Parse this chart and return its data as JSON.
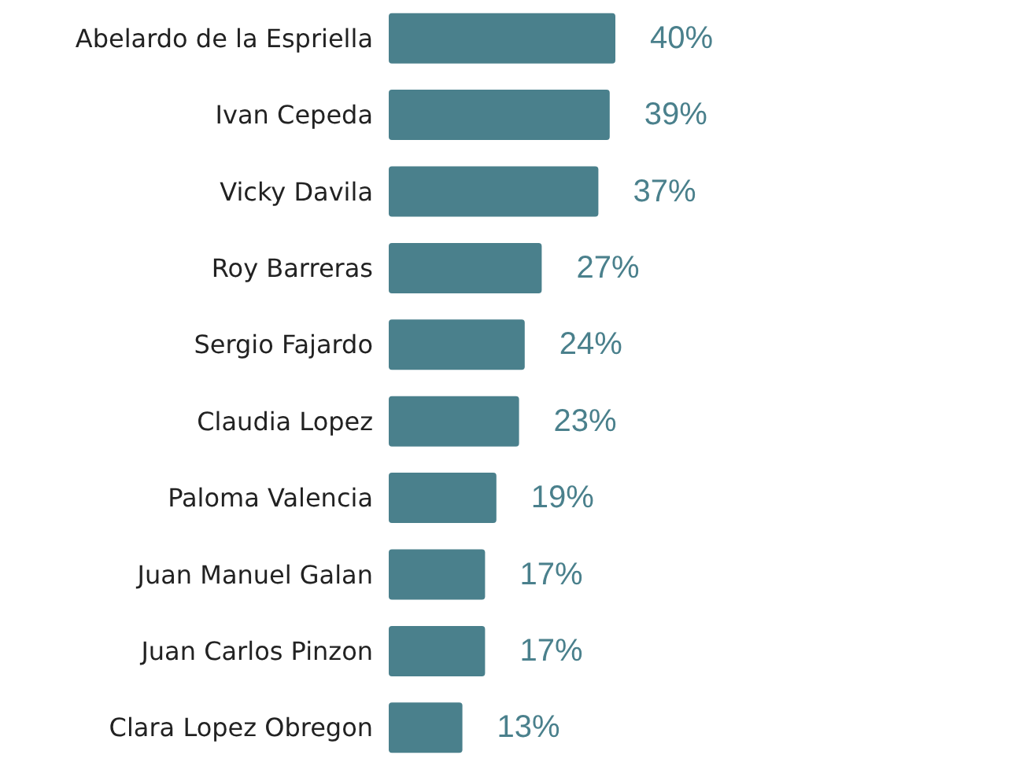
{
  "chart_data": {
    "type": "bar",
    "orientation": "horizontal",
    "categories": [
      "Abelardo de la Espriella",
      "Ivan Cepeda",
      "Vicky Davila",
      "Roy Barreras",
      "Sergio Fajardo",
      "Claudia Lopez",
      "Paloma Valencia",
      "Juan Manuel Galan",
      "Juan Carlos Pinzon",
      "Clara Lopez Obregon"
    ],
    "values": [
      40,
      39,
      37,
      27,
      24,
      23,
      19,
      17,
      17,
      13
    ],
    "value_labels": [
      "40%",
      "39%",
      "37%",
      "27%",
      "24%",
      "23%",
      "19%",
      "17%",
      "17%",
      "13%"
    ],
    "color": "#4a808c"
  }
}
